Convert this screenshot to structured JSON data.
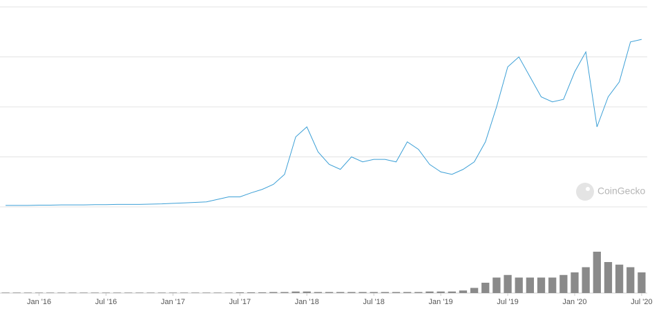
{
  "chart_data": {
    "type": "line",
    "x": [
      "2015-10",
      "2015-11",
      "2015-12",
      "2016-01",
      "2016-02",
      "2016-03",
      "2016-04",
      "2016-05",
      "2016-06",
      "2016-07",
      "2016-08",
      "2016-09",
      "2016-10",
      "2016-11",
      "2016-12",
      "2017-01",
      "2017-02",
      "2017-03",
      "2017-04",
      "2017-05",
      "2017-06",
      "2017-07",
      "2017-08",
      "2017-09",
      "2017-10",
      "2017-11",
      "2017-12",
      "2018-01",
      "2018-02",
      "2018-03",
      "2018-04",
      "2018-05",
      "2018-06",
      "2018-07",
      "2018-08",
      "2018-09",
      "2018-10",
      "2018-11",
      "2018-12",
      "2019-01",
      "2019-02",
      "2019-03",
      "2019-04",
      "2019-05",
      "2019-06",
      "2019-07",
      "2019-08",
      "2019-09",
      "2019-10",
      "2019-11",
      "2019-12",
      "2020-01",
      "2020-02",
      "2020-03",
      "2020-04",
      "2020-05",
      "2020-06",
      "2020-07"
    ],
    "series": [
      {
        "color": "#3b9fd6",
        "values": [
          0.03,
          0.03,
          0.03,
          0.035,
          0.035,
          0.04,
          0.04,
          0.04,
          0.045,
          0.045,
          0.05,
          0.05,
          0.05,
          0.055,
          0.06,
          0.07,
          0.08,
          0.09,
          0.1,
          0.15,
          0.2,
          0.2,
          0.28,
          0.35,
          0.45,
          0.65,
          1.4,
          1.6,
          1.1,
          0.85,
          0.75,
          1.0,
          0.9,
          0.95,
          0.95,
          0.9,
          1.3,
          1.15,
          0.85,
          0.7,
          0.65,
          0.75,
          0.9,
          1.3,
          2.0,
          2.8,
          3.0,
          2.6,
          2.2,
          2.1,
          2.15,
          2.7,
          3.1,
          1.6,
          2.2,
          2.5,
          3.3,
          3.35
        ]
      },
      {
        "color": "#8a8a8a",
        "axis": "y2",
        "values": [
          0.01,
          0.01,
          0.01,
          0.01,
          0.01,
          0.01,
          0.01,
          0.01,
          0.01,
          0.01,
          0.01,
          0.01,
          0.01,
          0.01,
          0.01,
          0.01,
          0.01,
          0.01,
          0.01,
          0.01,
          0.01,
          0.015,
          0.015,
          0.015,
          0.02,
          0.02,
          0.03,
          0.03,
          0.02,
          0.02,
          0.02,
          0.02,
          0.02,
          0.02,
          0.02,
          0.02,
          0.02,
          0.02,
          0.03,
          0.03,
          0.03,
          0.05,
          0.1,
          0.2,
          0.3,
          0.35,
          0.3,
          0.3,
          0.3,
          0.3,
          0.35,
          0.4,
          0.5,
          0.8,
          0.6,
          0.55,
          0.5,
          0.4
        ]
      }
    ],
    "xlim": [
      "2015-10",
      "2020-08"
    ],
    "xticks": [
      {
        "value": "2016-01",
        "label": "Jan '16"
      },
      {
        "value": "2016-07",
        "label": "Jul '16"
      },
      {
        "value": "2017-01",
        "label": "Jan '17"
      },
      {
        "value": "2017-07",
        "label": "Jul '17"
      },
      {
        "value": "2018-01",
        "label": "Jan '18"
      },
      {
        "value": "2018-07",
        "label": "Jul '18"
      },
      {
        "value": "2019-01",
        "label": "Jan '19"
      },
      {
        "value": "2019-07",
        "label": "Jul '19"
      },
      {
        "value": "2020-01",
        "label": "Jan '20"
      },
      {
        "value": "2020-07",
        "label": "Jul '20"
      }
    ],
    "ylim": [
      0,
      4
    ],
    "yticks": [
      0,
      1,
      2,
      3,
      4
    ],
    "y2lim": [
      0,
      1
    ],
    "grid": true,
    "watermark": "CoinGecko"
  }
}
